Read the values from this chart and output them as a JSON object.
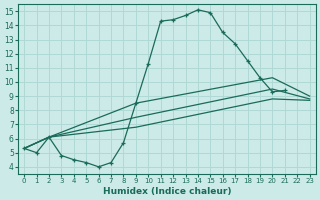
{
  "xlabel": "Humidex (Indice chaleur)",
  "xlim": [
    -0.5,
    23.5
  ],
  "ylim": [
    3.5,
    15.5
  ],
  "xticks": [
    0,
    1,
    2,
    3,
    4,
    5,
    6,
    7,
    8,
    9,
    10,
    11,
    12,
    13,
    14,
    15,
    16,
    17,
    18,
    19,
    20,
    21,
    22,
    23
  ],
  "yticks": [
    4,
    5,
    6,
    7,
    8,
    9,
    10,
    11,
    12,
    13,
    14,
    15
  ],
  "bg_color": "#cceae7",
  "grid_color": "#b0d8d4",
  "line_color": "#1a6b5a",
  "lines": [
    {
      "x": [
        0,
        1,
        2,
        3,
        4,
        5,
        6,
        7,
        8,
        9,
        10,
        11,
        12,
        13,
        14,
        15,
        16,
        17,
        18,
        19,
        20,
        21
      ],
      "y": [
        5.3,
        5.0,
        6.1,
        4.8,
        4.5,
        4.3,
        4.0,
        4.3,
        5.7,
        8.5,
        11.3,
        14.3,
        14.4,
        14.7,
        15.1,
        14.9,
        13.5,
        12.7,
        11.5,
        10.3,
        9.3,
        9.4
      ],
      "marker": true
    },
    {
      "x": [
        0,
        2,
        9,
        20,
        23
      ],
      "y": [
        5.3,
        6.1,
        8.5,
        10.3,
        9.0
      ],
      "marker": false
    },
    {
      "x": [
        0,
        2,
        9,
        20,
        23
      ],
      "y": [
        5.3,
        6.1,
        7.5,
        9.5,
        8.8
      ],
      "marker": false
    },
    {
      "x": [
        0,
        2,
        9,
        20,
        23
      ],
      "y": [
        5.3,
        6.1,
        6.8,
        8.8,
        8.7
      ],
      "marker": false
    }
  ]
}
